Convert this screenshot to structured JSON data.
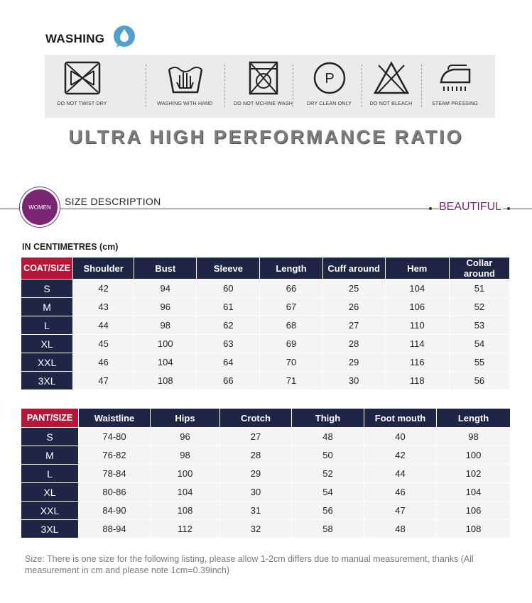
{
  "washing": {
    "title": "WASHING",
    "icons": [
      {
        "icon": "no-twist-dry-icon",
        "label": "DO NOT TWIST DRY"
      },
      {
        "icon": "hand-wash-icon",
        "label": "WASHING WITH HAND"
      },
      {
        "icon": "no-machine-wash-icon",
        "label": "DO NOT MCHINE WASH"
      },
      {
        "icon": "dry-clean-icon",
        "label": "DRY CLEAN ONLY",
        "symbol": "P"
      },
      {
        "icon": "no-bleach-icon",
        "label": "DO NOT BLEACH"
      },
      {
        "icon": "steam-iron-icon",
        "label": "STEAM PRESSING"
      }
    ]
  },
  "banner": {
    "text": "ULTRA HIGH PERFORMANCE RATIO"
  },
  "section": {
    "badge": "WOMEN",
    "title": "SIZE DESCRIPTION",
    "tag": "BEAUTIFUL",
    "badge_color": "#7b2673"
  },
  "units_caption": "IN CENTIMETRES (cm)",
  "colors": {
    "header_navy": "#1f2544",
    "corner_red": "#b51738",
    "cell_bg": "#f4f4f4"
  },
  "coat_table": {
    "headers": [
      "COAT/SIZE",
      "Shoulder",
      "Bust",
      "Sleeve",
      "Length",
      "Cuff around",
      "Hem",
      "Collar around"
    ],
    "rows": [
      [
        "S",
        "42",
        "94",
        "60",
        "66",
        "25",
        "104",
        "51"
      ],
      [
        "M",
        "43",
        "96",
        "61",
        "67",
        "26",
        "106",
        "52"
      ],
      [
        "L",
        "44",
        "98",
        "62",
        "68",
        "27",
        "110",
        "53"
      ],
      [
        "XL",
        "45",
        "100",
        "63",
        "69",
        "28",
        "114",
        "54"
      ],
      [
        "XXL",
        "46",
        "104",
        "64",
        "70",
        "29",
        "116",
        "55"
      ],
      [
        "3XL",
        "47",
        "108",
        "66",
        "71",
        "30",
        "118",
        "56"
      ]
    ]
  },
  "pant_table": {
    "headers": [
      "PANT/SIZE",
      "Waistline",
      "Hips",
      "Crotch",
      "Thigh",
      "Foot mouth",
      "Length"
    ],
    "rows": [
      [
        "S",
        "74-80",
        "96",
        "27",
        "48",
        "40",
        "98"
      ],
      [
        "M",
        "76-82",
        "98",
        "28",
        "50",
        "42",
        "100"
      ],
      [
        "L",
        "78-84",
        "100",
        "29",
        "52",
        "44",
        "102"
      ],
      [
        "XL",
        "80-86",
        "104",
        "30",
        "54",
        "46",
        "104"
      ],
      [
        "XXL",
        "84-90",
        "108",
        "31",
        "56",
        "47",
        "106"
      ],
      [
        "3XL",
        "88-94",
        "112",
        "32",
        "58",
        "48",
        "108"
      ]
    ]
  },
  "note": "Size: There is one size for the following listing, please allow 1-2cm differs due to manual measurement, thanks (All measurement in cm and please note 1cm=0.39inch)"
}
